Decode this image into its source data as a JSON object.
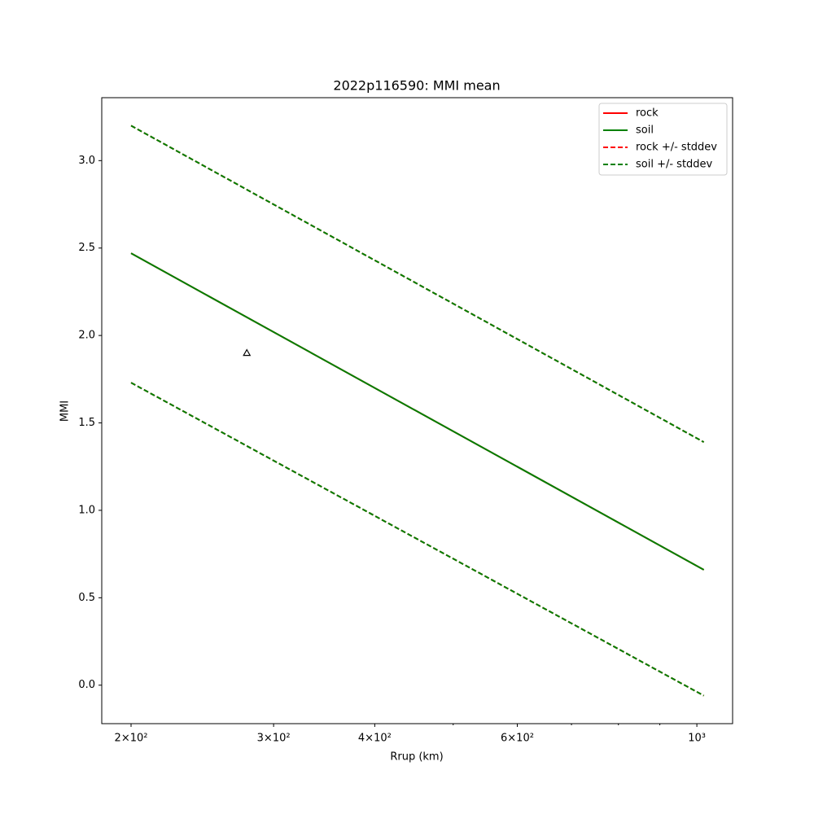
{
  "chart_data": {
    "type": "line",
    "title": "2022p116590: MMI mean",
    "xlabel": "Rrup (km)",
    "ylabel": "MMI",
    "xscale": "log",
    "x": [
      200,
      1020
    ],
    "series": [
      {
        "name": "rock",
        "color": "#ff0000",
        "style": "solid",
        "values": [
          2.47,
          0.66
        ]
      },
      {
        "name": "soil",
        "color": "#008000",
        "style": "solid",
        "values": [
          2.47,
          0.66
        ]
      },
      {
        "name": "rock +/- stddev",
        "color": "#ff0000",
        "style": "dashed",
        "upper": [
          3.2,
          1.39
        ],
        "lower": [
          1.73,
          -0.06
        ]
      },
      {
        "name": "soil +/- stddev",
        "color": "#008000",
        "style": "dashed",
        "upper": [
          3.2,
          1.39
        ],
        "lower": [
          1.73,
          -0.06
        ]
      }
    ],
    "points": {
      "x": [
        278
      ],
      "values": [
        1.9
      ],
      "marker": "triangle",
      "color": "#000000"
    },
    "xlim": [
      184,
      1107
    ],
    "ylim": [
      -0.22,
      3.36
    ],
    "xticks": [
      {
        "value": 200,
        "label": "2×10²"
      },
      {
        "value": 300,
        "label": "3×10²"
      },
      {
        "value": 400,
        "label": "4×10²"
      },
      {
        "value": 600,
        "label": "6×10²"
      },
      {
        "value": 1000,
        "label": "10³"
      }
    ],
    "xminorticks": [
      500,
      700,
      800,
      900
    ],
    "yticks": [
      {
        "value": 0,
        "label": "0.0"
      },
      {
        "value": 0.5,
        "label": "0.5"
      },
      {
        "value": 1,
        "label": "1.0"
      },
      {
        "value": 1.5,
        "label": "1.5"
      },
      {
        "value": 2,
        "label": "2.0"
      },
      {
        "value": 2.5,
        "label": "2.5"
      },
      {
        "value": 3,
        "label": "3.0"
      }
    ],
    "legend": "upper right",
    "grid": false
  }
}
